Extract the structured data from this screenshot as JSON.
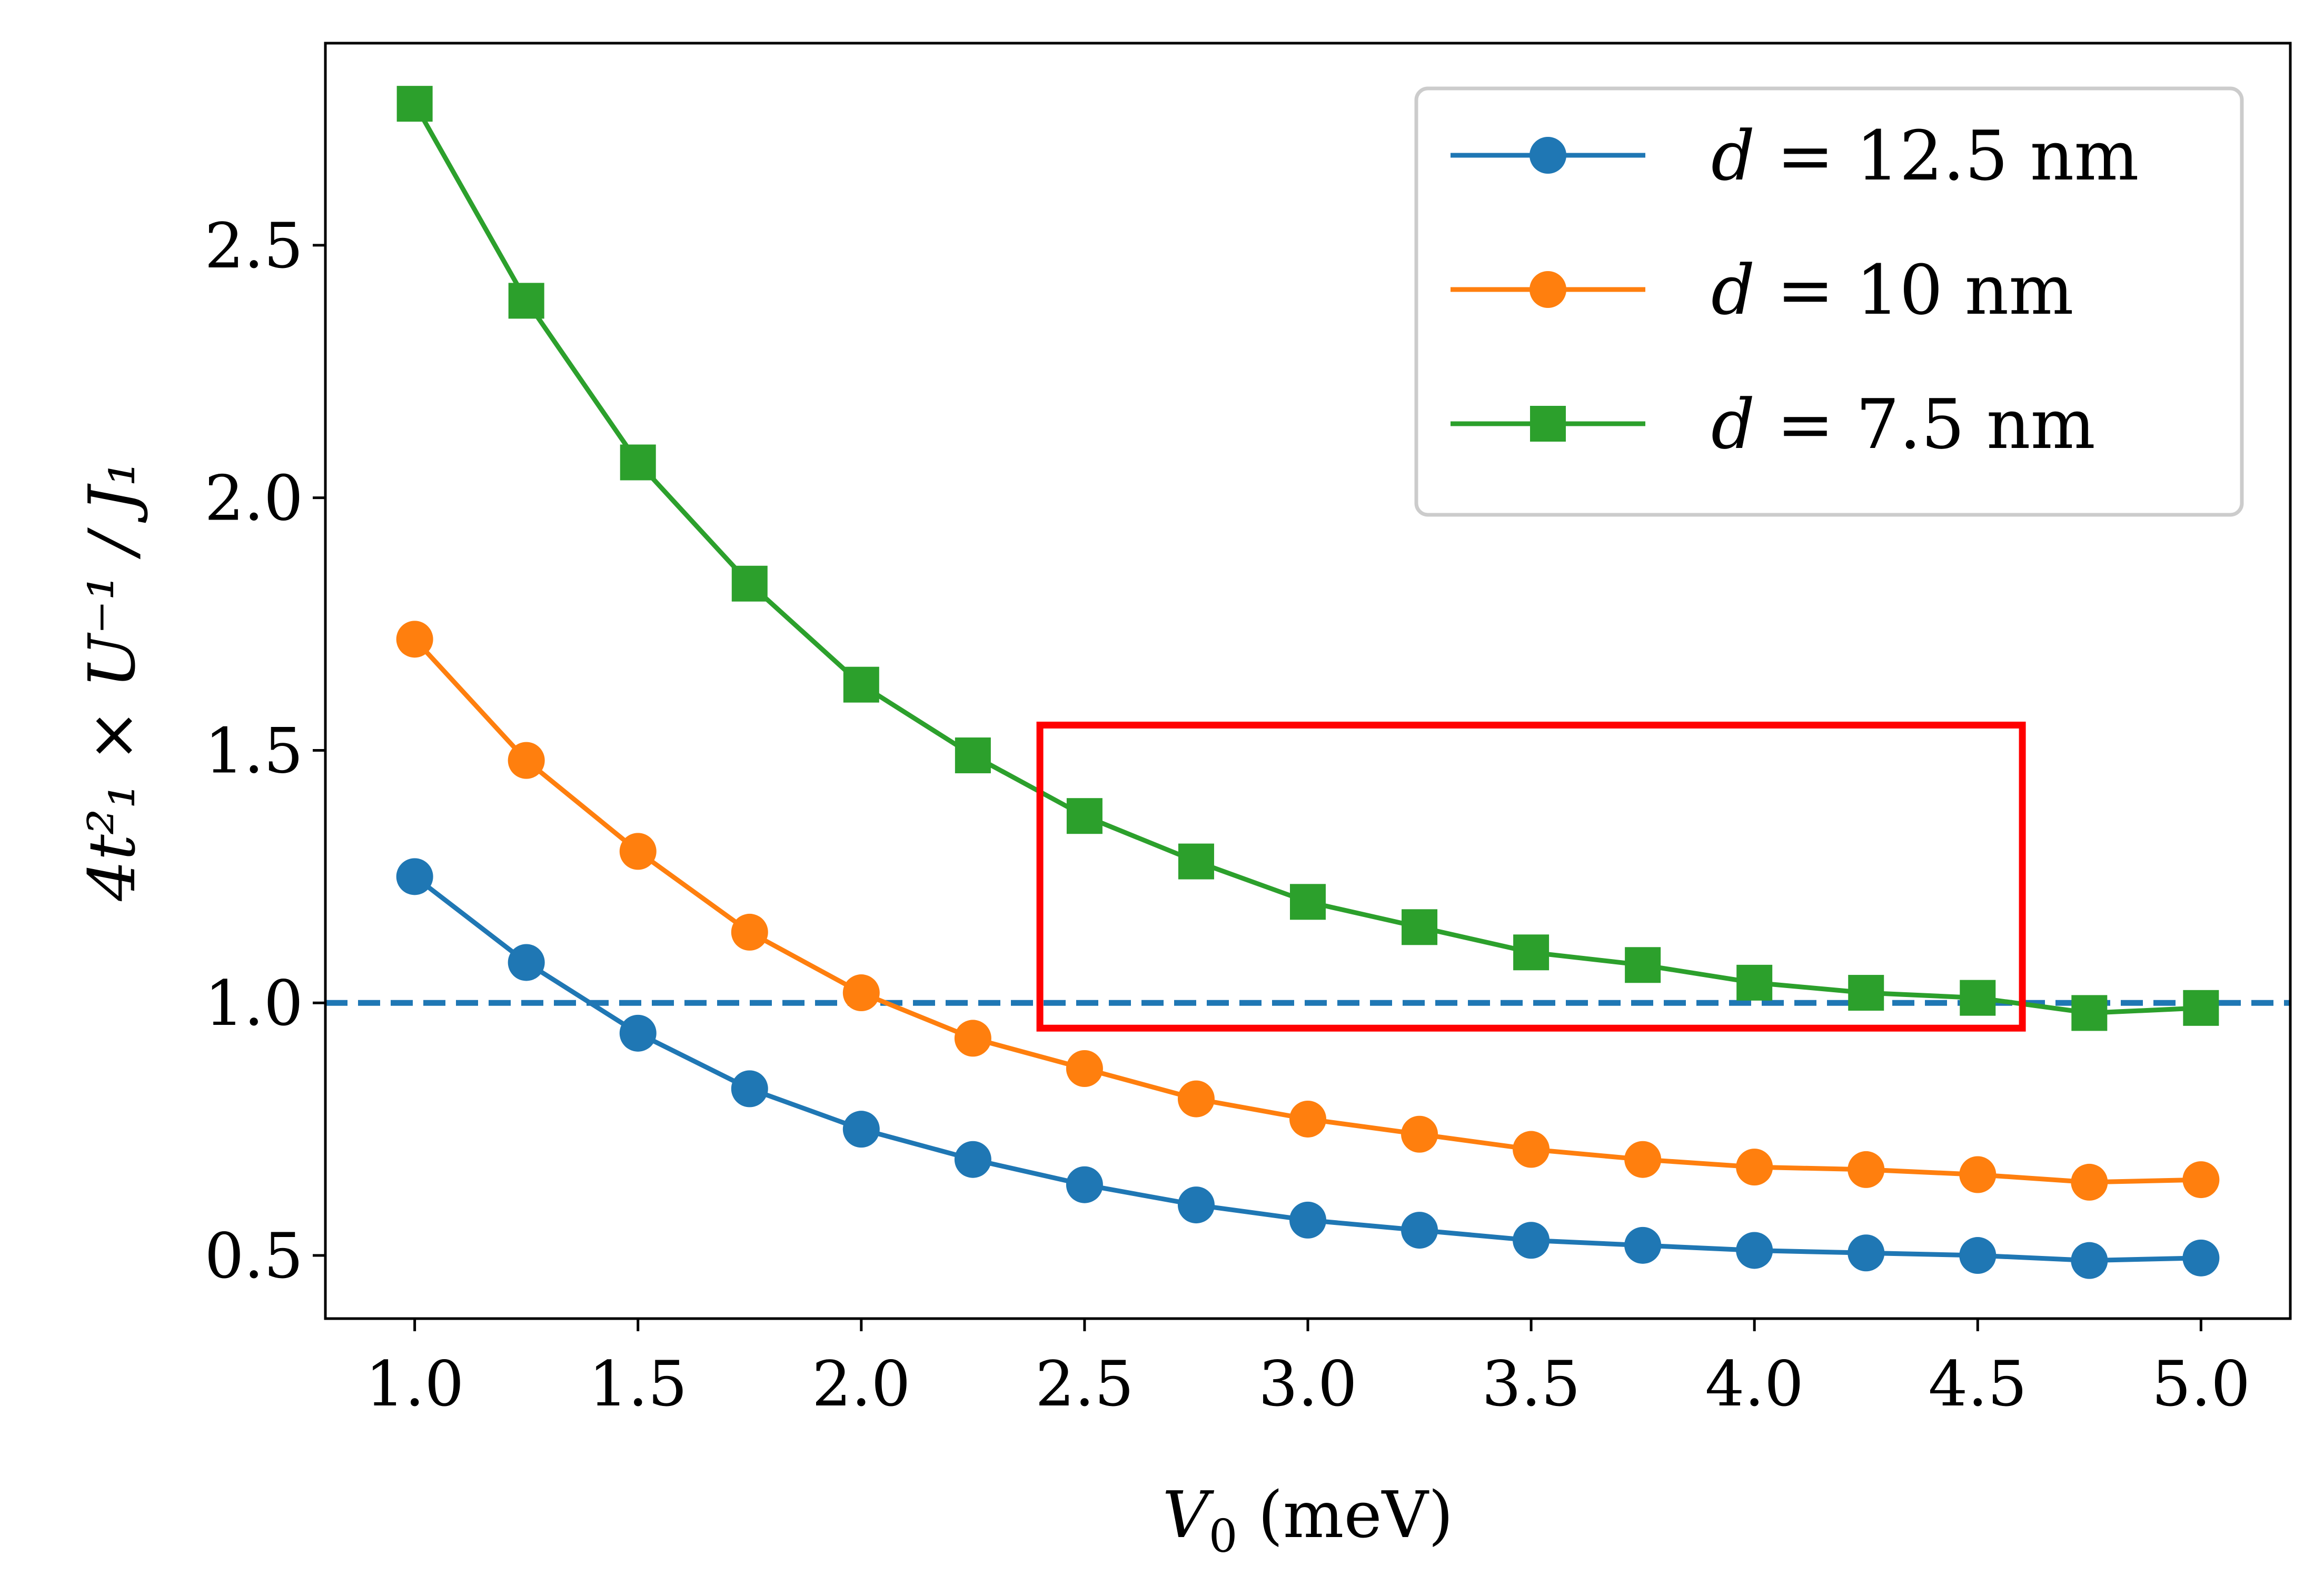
{
  "chart_data": {
    "type": "line",
    "title": "",
    "xlabel": {
      "pre": "V",
      "sub": "0",
      "post": " (meV)"
    },
    "ylabel": {
      "text": "4t²₁ × U⁻¹ / J₁"
    },
    "xlim": [
      0.8,
      5.2
    ],
    "ylim": [
      0.375,
      2.9
    ],
    "xticks": [
      1.0,
      1.5,
      2.0,
      2.5,
      3.0,
      3.5,
      4.0,
      4.5,
      5.0
    ],
    "xtick_labels": [
      "1.0",
      "1.5",
      "2.0",
      "2.5",
      "3.0",
      "3.5",
      "4.0",
      "4.5",
      "5.0"
    ],
    "yticks": [
      0.5,
      1.0,
      1.5,
      2.0,
      2.5
    ],
    "ytick_labels": [
      "0.5",
      "1.0",
      "1.5",
      "2.0",
      "2.5"
    ],
    "grid": false,
    "legend_placement": "top-right",
    "x": [
      1.0,
      1.25,
      1.5,
      1.75,
      2.0,
      2.25,
      2.5,
      2.75,
      3.0,
      3.25,
      3.5,
      3.75,
      4.0,
      4.25,
      4.5,
      4.75,
      5.0
    ],
    "series": [
      {
        "name": "d = 12.5 nm",
        "legend": {
          "var": "d",
          "rest": " = 12.5 nm"
        },
        "color": "#1f77b4",
        "marker": "circle",
        "values": [
          1.25,
          1.08,
          0.94,
          0.83,
          0.75,
          0.69,
          0.64,
          0.6,
          0.57,
          0.55,
          0.53,
          0.52,
          0.51,
          0.505,
          0.5,
          0.49,
          0.495
        ]
      },
      {
        "name": "d = 10 nm",
        "legend": {
          "var": "d",
          "rest": " = 10 nm"
        },
        "color": "#ff7f0e",
        "marker": "circle",
        "values": [
          1.72,
          1.48,
          1.3,
          1.14,
          1.02,
          0.93,
          0.87,
          0.81,
          0.77,
          0.74,
          0.71,
          0.69,
          0.675,
          0.67,
          0.66,
          0.645,
          0.65
        ]
      },
      {
        "name": "d = 7.5 nm",
        "legend": {
          "var": "d",
          "rest": " = 7.5 nm"
        },
        "color": "#2ca02c",
        "marker": "square",
        "values": [
          2.78,
          2.39,
          2.07,
          1.83,
          1.63,
          1.49,
          1.37,
          1.28,
          1.2,
          1.15,
          1.1,
          1.075,
          1.04,
          1.02,
          1.01,
          0.98,
          0.99
        ]
      }
    ],
    "reference_line": {
      "y": 1.0,
      "style": "dashed",
      "color": "#1f77b4"
    },
    "highlight_box": {
      "x0": 2.4,
      "x1": 4.6,
      "y0": 0.95,
      "y1": 1.55,
      "color": "#ff0000"
    }
  }
}
